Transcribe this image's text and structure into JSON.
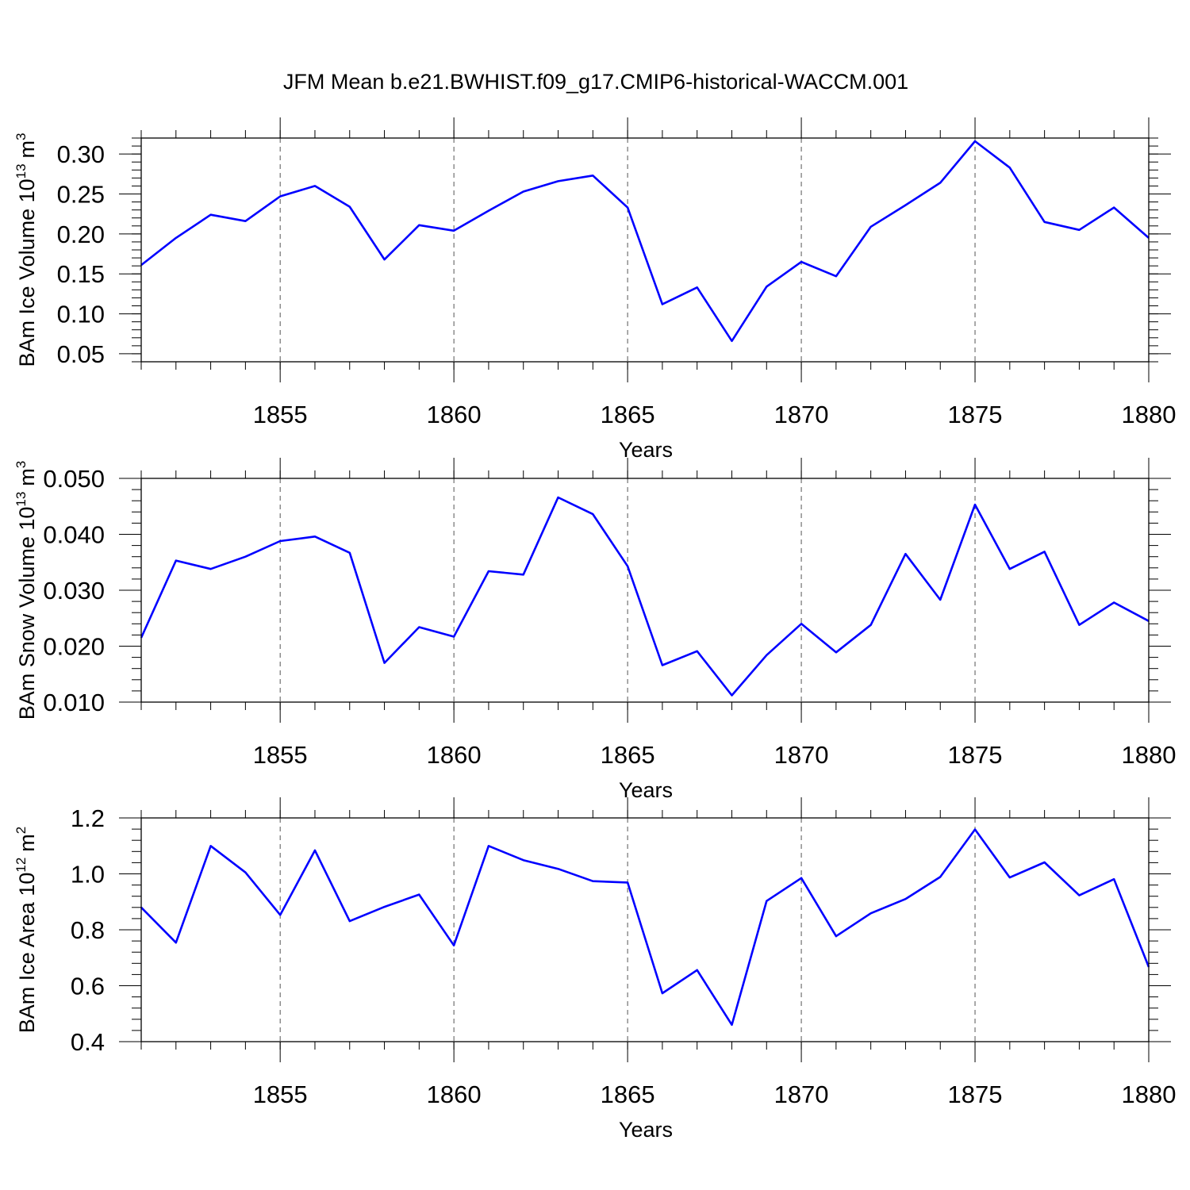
{
  "title": "JFM Mean b.e21.BWHIST.f09_g17.CMIP6-historical-WACCM.001",
  "colors": {
    "series": "#0000ff",
    "axis": "#000000",
    "grid": "#555555"
  },
  "chart_data": [
    {
      "type": "line",
      "ylabel": {
        "prefix": "BAm Ice Volume 10",
        "exponent": "13",
        "unit": "m",
        "unit_exponent": "3"
      },
      "xlabel": "Years",
      "xlim": [
        1851,
        1880
      ],
      "ylim": [
        0.04,
        0.32
      ],
      "xticks": [
        "1855",
        "1860",
        "1865",
        "1870",
        "1875",
        "1880"
      ],
      "yticks": [
        "0.05",
        "0.10",
        "0.15",
        "0.20",
        "0.25",
        "0.30"
      ],
      "x": [
        1851,
        1852,
        1853,
        1854,
        1855,
        1856,
        1857,
        1858,
        1859,
        1860,
        1861,
        1862,
        1863,
        1864,
        1865,
        1866,
        1867,
        1868,
        1869,
        1870,
        1871,
        1872,
        1873,
        1874,
        1875,
        1876,
        1877,
        1878,
        1879,
        1880
      ],
      "values": [
        0.161,
        0.195,
        0.224,
        0.216,
        0.247,
        0.26,
        0.234,
        0.168,
        0.211,
        0.204,
        0.229,
        0.253,
        0.266,
        0.273,
        0.233,
        0.112,
        0.133,
        0.066,
        0.134,
        0.165,
        0.147,
        0.209,
        0.236,
        0.264,
        0.316,
        0.283,
        0.215,
        0.205,
        0.233,
        0.195
      ]
    },
    {
      "type": "line",
      "ylabel": {
        "prefix": "BAm Snow Volume 10",
        "exponent": "13",
        "unit": "m",
        "unit_exponent": "3"
      },
      "xlabel": "Years",
      "xlim": [
        1851,
        1880
      ],
      "ylim": [
        0.01,
        0.05
      ],
      "xticks": [
        "1855",
        "1860",
        "1865",
        "1870",
        "1875",
        "1880"
      ],
      "yticks": [
        "0.010",
        "0.020",
        "0.030",
        "0.040",
        "0.050"
      ],
      "x": [
        1851,
        1852,
        1853,
        1854,
        1855,
        1856,
        1857,
        1858,
        1859,
        1860,
        1861,
        1862,
        1863,
        1864,
        1865,
        1866,
        1867,
        1868,
        1869,
        1870,
        1871,
        1872,
        1873,
        1874,
        1875,
        1876,
        1877,
        1878,
        1879,
        1880
      ],
      "values": [
        0.0215,
        0.0353,
        0.0338,
        0.036,
        0.0388,
        0.0396,
        0.0367,
        0.017,
        0.0234,
        0.0217,
        0.0334,
        0.0328,
        0.0466,
        0.0436,
        0.0343,
        0.0166,
        0.0191,
        0.0112,
        0.0184,
        0.024,
        0.0189,
        0.0238,
        0.0365,
        0.0283,
        0.0453,
        0.0338,
        0.0369,
        0.0238,
        0.0278,
        0.0245
      ]
    },
    {
      "type": "line",
      "ylabel": {
        "prefix": "BAm Ice Area 10",
        "exponent": "12",
        "unit": "m",
        "unit_exponent": "2"
      },
      "xlabel": "Years",
      "xlim": [
        1851,
        1880
      ],
      "ylim": [
        0.4,
        1.2
      ],
      "xticks": [
        "1855",
        "1860",
        "1865",
        "1870",
        "1875",
        "1880"
      ],
      "yticks": [
        "0.4",
        "0.6",
        "0.8",
        "1.0",
        "1.2"
      ],
      "x": [
        1851,
        1852,
        1853,
        1854,
        1855,
        1856,
        1857,
        1858,
        1859,
        1860,
        1861,
        1862,
        1863,
        1864,
        1865,
        1866,
        1867,
        1868,
        1869,
        1870,
        1871,
        1872,
        1873,
        1874,
        1875,
        1876,
        1877,
        1878,
        1879,
        1880
      ],
      "values": [
        0.88,
        0.754,
        1.1,
        1.005,
        0.853,
        1.084,
        0.831,
        0.882,
        0.926,
        0.744,
        1.1,
        1.049,
        1.018,
        0.974,
        0.969,
        0.573,
        0.656,
        0.46,
        0.903,
        0.985,
        0.777,
        0.859,
        0.91,
        0.989,
        1.159,
        0.987,
        1.041,
        0.923,
        0.981,
        0.667
      ]
    }
  ]
}
